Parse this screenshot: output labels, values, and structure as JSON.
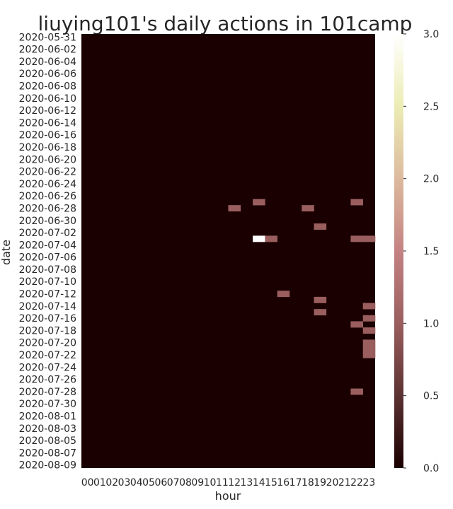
{
  "chart_data": {
    "type": "heatmap",
    "title": "liuying101's daily actions in 101camp",
    "xlabel": "hour",
    "ylabel": "date",
    "x": [
      "00",
      "01",
      "02",
      "03",
      "04",
      "05",
      "06",
      "07",
      "08",
      "09",
      "10",
      "11",
      "12",
      "13",
      "14",
      "15",
      "16",
      "17",
      "18",
      "19",
      "20",
      "21",
      "22",
      "23"
    ],
    "y_start_date": "2020-05-31",
    "y_end_date": "2020-08-09",
    "y_tick_labels": [
      "2020-05-31",
      "2020-06-02",
      "2020-06-04",
      "2020-06-06",
      "2020-06-08",
      "2020-06-10",
      "2020-06-12",
      "2020-06-14",
      "2020-06-16",
      "2020-06-18",
      "2020-06-20",
      "2020-06-22",
      "2020-06-24",
      "2020-06-26",
      "2020-06-28",
      "2020-06-30",
      "2020-07-02",
      "2020-07-04",
      "2020-07-06",
      "2020-07-08",
      "2020-07-10",
      "2020-07-12",
      "2020-07-14",
      "2020-07-16",
      "2020-07-18",
      "2020-07-20",
      "2020-07-22",
      "2020-07-24",
      "2020-07-26",
      "2020-07-28",
      "2020-07-30",
      "2020-08-01",
      "2020-08-03",
      "2020-08-05",
      "2020-08-07",
      "2020-08-09"
    ],
    "colorbar": {
      "min": 0.0,
      "max": 3.0,
      "ticks": [
        "0.0",
        "0.5",
        "1.0",
        "1.5",
        "2.0",
        "2.5",
        "3.0"
      ]
    },
    "colormap": [
      "#1a0000",
      "#5c3232",
      "#9a5e5e",
      "#c48282",
      "#dcba9e",
      "#ececb4",
      "#ffffff"
    ],
    "nonzero_cells": [
      {
        "date": "2020-06-27",
        "hour": "14",
        "value": 1
      },
      {
        "date": "2020-06-27",
        "hour": "22",
        "value": 1
      },
      {
        "date": "2020-06-28",
        "hour": "12",
        "value": 1
      },
      {
        "date": "2020-06-28",
        "hour": "18",
        "value": 1
      },
      {
        "date": "2020-07-01",
        "hour": "19",
        "value": 1
      },
      {
        "date": "2020-07-03",
        "hour": "14",
        "value": 3
      },
      {
        "date": "2020-07-03",
        "hour": "15",
        "value": 1
      },
      {
        "date": "2020-07-03",
        "hour": "22",
        "value": 1
      },
      {
        "date": "2020-07-03",
        "hour": "23",
        "value": 1
      },
      {
        "date": "2020-07-12",
        "hour": "16",
        "value": 1
      },
      {
        "date": "2020-07-13",
        "hour": "19",
        "value": 1
      },
      {
        "date": "2020-07-14",
        "hour": "23",
        "value": 1
      },
      {
        "date": "2020-07-15",
        "hour": "19",
        "value": 1
      },
      {
        "date": "2020-07-16",
        "hour": "23",
        "value": 1
      },
      {
        "date": "2020-07-17",
        "hour": "22",
        "value": 1
      },
      {
        "date": "2020-07-18",
        "hour": "23",
        "value": 1
      },
      {
        "date": "2020-07-20",
        "hour": "23",
        "value": 1
      },
      {
        "date": "2020-07-21",
        "hour": "23",
        "value": 1
      },
      {
        "date": "2020-07-22",
        "hour": "23",
        "value": 1
      },
      {
        "date": "2020-07-28",
        "hour": "22",
        "value": 1
      }
    ]
  }
}
